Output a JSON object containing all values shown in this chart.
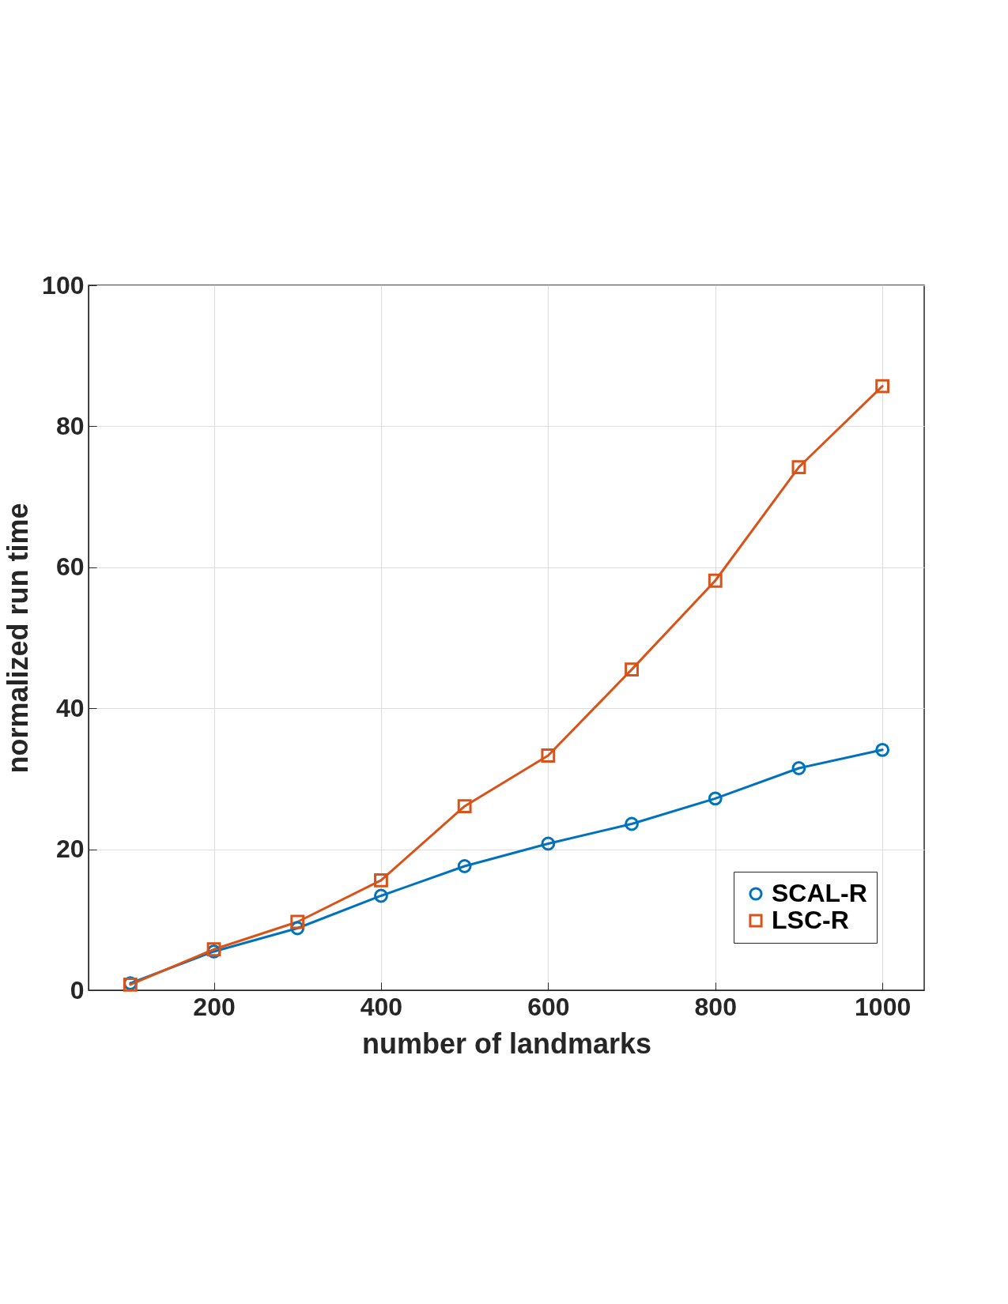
{
  "chart_data": {
    "type": "line",
    "xlabel": "number of landmarks",
    "ylabel": "normalized run time",
    "x": [
      100,
      200,
      300,
      400,
      500,
      600,
      700,
      800,
      900,
      1000
    ],
    "series": [
      {
        "name": "SCAL-R",
        "color": "#0072bd",
        "marker": "circle",
        "values": [
          1.0,
          5.5,
          8.8,
          13.4,
          17.6,
          20.8,
          23.6,
          27.2,
          31.5,
          34.1
        ]
      },
      {
        "name": "LSC-R",
        "color": "#d95319",
        "marker": "square",
        "values": [
          0.8,
          5.8,
          9.7,
          15.6,
          26.1,
          33.3,
          45.5,
          58.1,
          74.2,
          85.7
        ]
      }
    ],
    "xlim": [
      50,
      1050
    ],
    "xticks": [
      200,
      400,
      600,
      800,
      1000
    ],
    "ylim": [
      0,
      100
    ],
    "yticks": [
      0,
      20,
      40,
      60,
      80,
      100
    ],
    "grid": true,
    "legend": "bottom right",
    "line_style": "solid"
  }
}
